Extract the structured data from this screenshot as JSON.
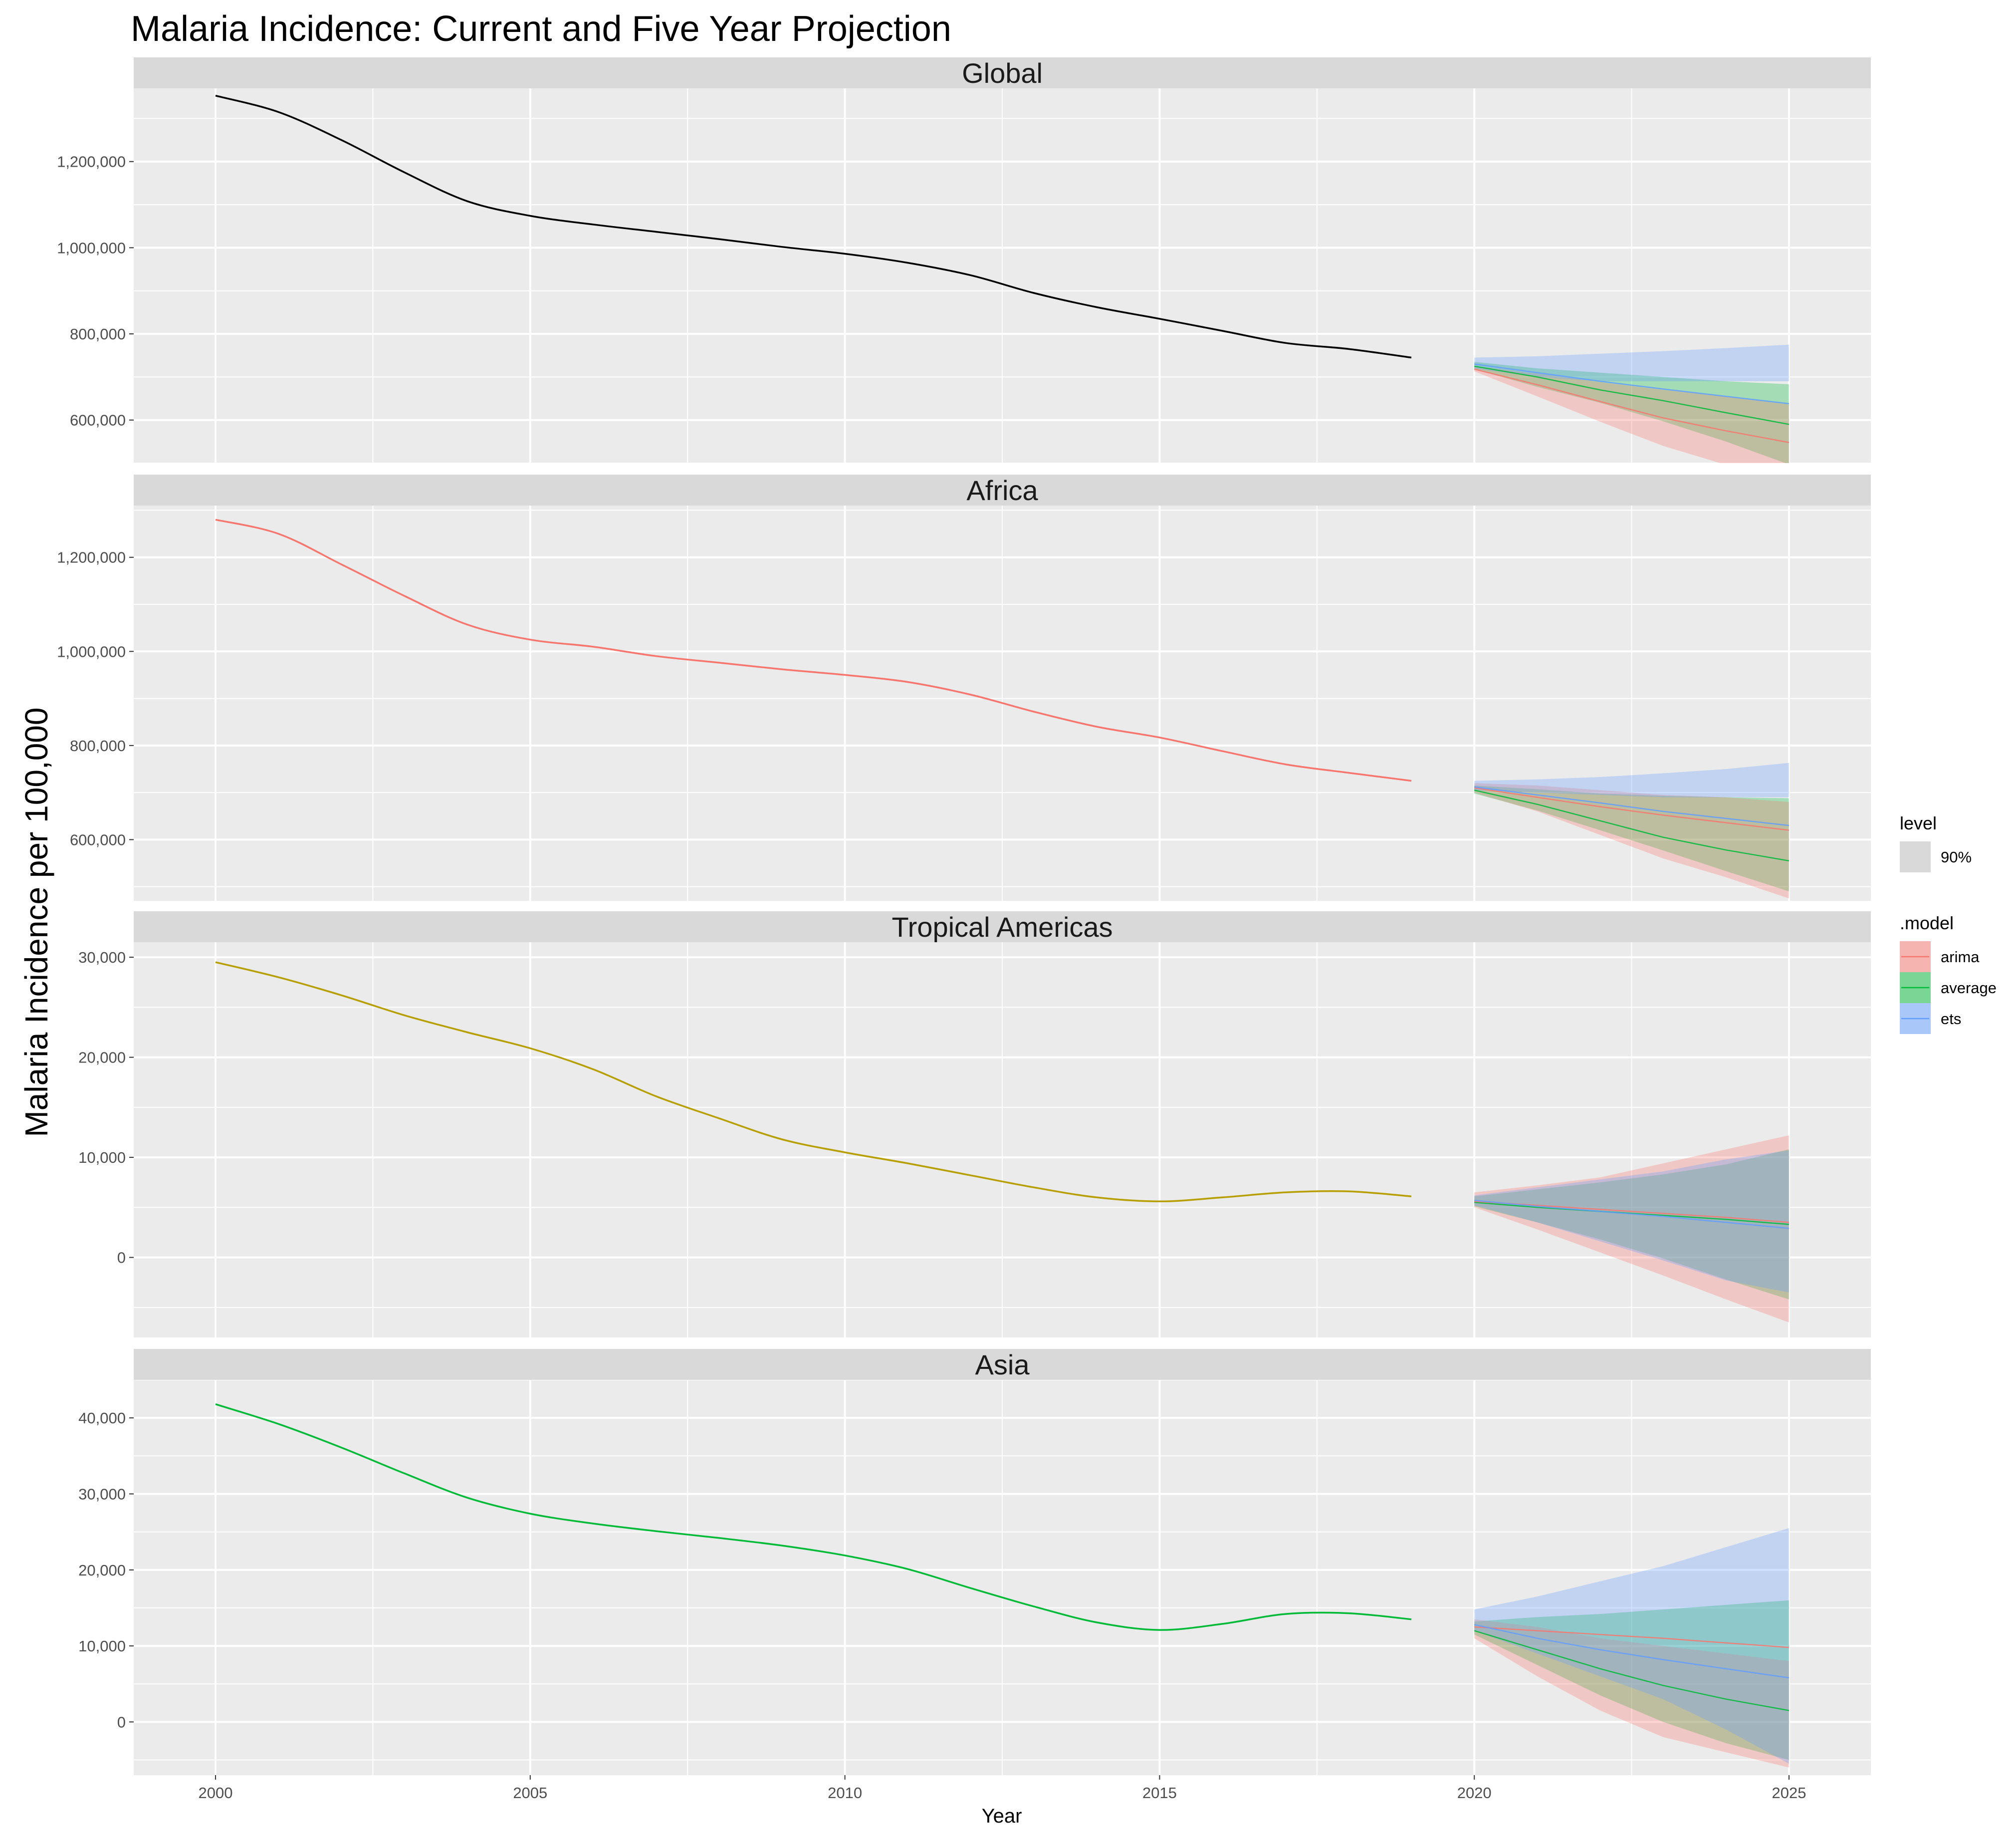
{
  "chart_data": {
    "type": "line",
    "title": "Malaria Incidence: Current and Five Year Projection",
    "xlabel": "Year",
    "ylabel": "Malaria Incidence per 100,000",
    "xlim": [
      1998.7,
      2026.3
    ],
    "x_ticks": [
      2000,
      2005,
      2010,
      2015,
      2020,
      2025
    ],
    "x_tick_labels": [
      "2000",
      "2005",
      "2010",
      "2015",
      "2020",
      "2025"
    ],
    "grid": true,
    "legend": {
      "placement": "right",
      "level_title": "level",
      "level_items": [
        {
          "label": "90%",
          "color": "#d9d9d9"
        }
      ],
      "model_title": ".model",
      "model_items": [
        {
          "label": "arima",
          "color": "#F8766D"
        },
        {
          "label": "average",
          "color": "#00BA38"
        },
        {
          "label": "ets",
          "color": "#619CFF"
        }
      ]
    },
    "panels": [
      {
        "name": "Global",
        "line_color": "#000000",
        "ylim": [
          500000,
          1370000
        ],
        "y_ticks": [
          600000,
          800000,
          1000000,
          1200000
        ],
        "y_tick_labels": [
          "600,000",
          "800,000",
          "1,000,000",
          "1,200,000"
        ],
        "history": {
          "x": [
            2000,
            2001,
            2002,
            2003,
            2004,
            2005,
            2006,
            2007,
            2008,
            2009,
            2010,
            2011,
            2012,
            2013,
            2014,
            2015,
            2016,
            2017,
            2018,
            2019
          ],
          "y": [
            1353000,
            1315000,
            1250000,
            1175000,
            1108000,
            1074000,
            1054000,
            1037000,
            1020000,
            1002000,
            986000,
            965000,
            936000,
            895000,
            862000,
            835000,
            807000,
            779000,
            765000,
            745000
          ]
        },
        "forecast": {
          "x": [
            2020,
            2021,
            2022,
            2023,
            2024,
            2025
          ],
          "arima": {
            "mean": [
              718000,
              682000,
              643000,
              605000,
              575000,
              548000
            ],
            "lo": [
              713000,
              655000,
              596000,
              540000,
              496000,
              465000
            ],
            "hi": [
              725000,
              708000,
              688000,
              670000,
              655000,
              636000
            ]
          },
          "average": {
            "mean": [
              725000,
              700000,
              670000,
              645000,
              617000,
              590000
            ],
            "lo": [
              718000,
              677000,
              640000,
              597000,
              550000,
              497000
            ],
            "hi": [
              735000,
              720000,
              710000,
              700000,
              690000,
              683000
            ]
          },
          "ets": {
            "mean": [
              730000,
              710000,
              690000,
              672000,
              655000,
              638000
            ],
            "lo": [
              720000,
              700000,
              690000,
              690000,
              690000,
              690000
            ],
            "hi": [
              745000,
              748000,
              754000,
              760000,
              767000,
              775000
            ]
          }
        }
      },
      {
        "name": "Africa",
        "line_color": "#F8766D",
        "ylim": [
          470000,
          1310000
        ],
        "y_ticks": [
          600000,
          800000,
          1000000,
          1200000
        ],
        "y_tick_labels": [
          "600,000",
          "800,000",
          "1,000,000",
          "1,200,000"
        ],
        "history": {
          "x": [
            2000,
            2001,
            2002,
            2003,
            2004,
            2005,
            2006,
            2007,
            2008,
            2009,
            2010,
            2011,
            2012,
            2013,
            2014,
            2015,
            2016,
            2017,
            2018,
            2019
          ],
          "y": [
            1280000,
            1250000,
            1185000,
            1118000,
            1057000,
            1025000,
            1010000,
            990000,
            976000,
            962000,
            950000,
            935000,
            908000,
            872000,
            840000,
            817000,
            788000,
            760000,
            742000,
            725000
          ]
        },
        "forecast": {
          "x": [
            2020,
            2021,
            2022,
            2023,
            2024,
            2025
          ],
          "arima": {
            "mean": [
              710000,
              690000,
              670000,
              652000,
              636000,
              620000
            ],
            "lo": [
              700000,
              660000,
              610000,
              560000,
              520000,
              475000
            ],
            "hi": [
              720000,
              715000,
              705000,
              695000,
              690000,
              680000
            ]
          },
          "average": {
            "mean": [
              705000,
              675000,
              640000,
              605000,
              578000,
              555000
            ],
            "lo": [
              698000,
              662000,
              620000,
              577000,
              533000,
              490000
            ],
            "hi": [
              715000,
              707000,
              698000,
              693000,
              690000,
              688000
            ]
          },
          "ets": {
            "mean": [
              712000,
              695000,
              678000,
              660000,
              645000,
              630000
            ],
            "lo": [
              705000,
              700000,
              695000,
              690000,
              690000,
              690000
            ],
            "hi": [
              725000,
              728000,
              733000,
              741000,
              750000,
              763000
            ]
          }
        }
      },
      {
        "name": "Tropical Americas",
        "line_color": "#B79F00",
        "ylim": [
          -8000,
          31500
        ],
        "y_ticks": [
          0,
          10000,
          20000,
          30000
        ],
        "y_tick_labels": [
          "0",
          "10,000",
          "20,000",
          "30,000"
        ],
        "history": {
          "x": [
            2000,
            2001,
            2002,
            2003,
            2004,
            2005,
            2006,
            2007,
            2008,
            2009,
            2010,
            2011,
            2012,
            2013,
            2014,
            2015,
            2016,
            2017,
            2018,
            2019
          ],
          "y": [
            29500,
            28000,
            26200,
            24200,
            22500,
            20900,
            18800,
            16100,
            13900,
            11800,
            10500,
            9400,
            8200,
            7000,
            6000,
            5600,
            6000,
            6500,
            6600,
            6100
          ]
        },
        "forecast": {
          "x": [
            2020,
            2021,
            2022,
            2023,
            2024,
            2025
          ],
          "arima": {
            "mean": [
              5600,
              5200,
              4800,
              4400,
              4000,
              3500
            ],
            "lo": [
              5000,
              2800,
              500,
              -1800,
              -4200,
              -6500
            ],
            "hi": [
              6500,
              7200,
              8000,
              9400,
              10800,
              12200
            ]
          },
          "average": {
            "mean": [
              5500,
              5000,
              4600,
              4200,
              3800,
              3300
            ],
            "lo": [
              5100,
              3500,
              1800,
              -100,
              -2200,
              -4200
            ],
            "hi": [
              6100,
              6800,
              7500,
              8300,
              9300,
              10800
            ]
          },
          "ets": {
            "mean": [
              5700,
              5100,
              4600,
              4100,
              3500,
              2900
            ],
            "lo": [
              5200,
              3500,
              1600,
              -300,
              -2300,
              -3500
            ],
            "hi": [
              6200,
              7000,
              7800,
              8600,
              9800,
              10700
            ]
          }
        }
      },
      {
        "name": "Asia",
        "line_color": "#00BA38",
        "ylim": [
          -7000,
          45000
        ],
        "y_ticks": [
          0,
          10000,
          20000,
          30000,
          40000
        ],
        "y_tick_labels": [
          "0",
          "10,000",
          "20,000",
          "30,000",
          "40,000"
        ],
        "history": {
          "x": [
            2000,
            2001,
            2002,
            2003,
            2004,
            2005,
            2006,
            2007,
            2008,
            2009,
            2010,
            2011,
            2012,
            2013,
            2014,
            2015,
            2016,
            2017,
            2018,
            2019
          ],
          "y": [
            41800,
            39200,
            36100,
            32700,
            29500,
            27400,
            26100,
            25100,
            24200,
            23200,
            21900,
            20100,
            17600,
            15200,
            13100,
            12100,
            12900,
            14200,
            14300,
            13500
          ]
        },
        "forecast": {
          "x": [
            2020,
            2021,
            2022,
            2023,
            2024,
            2025
          ],
          "arima": {
            "mean": [
              12500,
              12000,
              11500,
              11000,
              10400,
              9800
            ],
            "lo": [
              11000,
              6000,
              1500,
              -2000,
              -4000,
              -6000
            ],
            "hi": [
              13500,
              12500,
              11000,
              10000,
              9000,
              8000
            ]
          },
          "average": {
            "mean": [
              12000,
              9500,
              7000,
              4800,
              3000,
              1500
            ],
            "lo": [
              11500,
              7500,
              3500,
              0,
              -2800,
              -5000
            ],
            "hi": [
              13200,
              13800,
              14200,
              14800,
              15400,
              16000
            ]
          },
          "ets": {
            "mean": [
              12800,
              11000,
              9500,
              8200,
              7000,
              5800
            ],
            "lo": [
              12000,
              9000,
              6000,
              3000,
              -1000,
              -5500
            ],
            "hi": [
              14800,
              16500,
              18500,
              20500,
              23000,
              25500
            ]
          }
        }
      }
    ]
  }
}
